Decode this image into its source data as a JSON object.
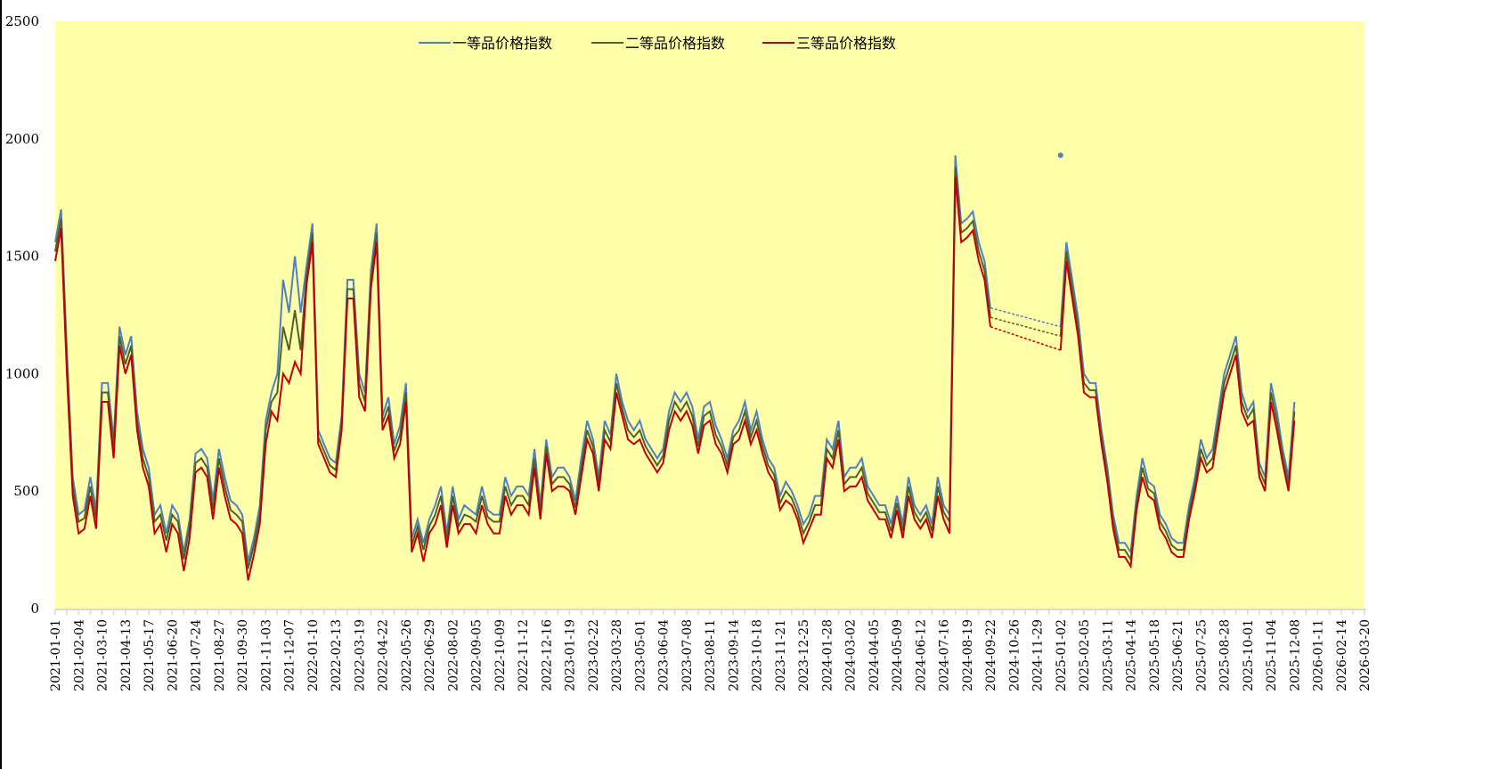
{
  "chart_data": {
    "type": "line",
    "title": "",
    "xlabel": "",
    "ylabel": "",
    "ylim": [
      0,
      2500
    ],
    "yticks": [
      0,
      500,
      1000,
      1500,
      2000,
      2500
    ],
    "grid": false,
    "legend_position": "top-center",
    "plot_background": "#FFFFAA",
    "x_tick_labels": [
      "2021-01-01",
      "2021-02-04",
      "2021-03-10",
      "2021-04-13",
      "2021-05-17",
      "2021-06-20",
      "2021-07-24",
      "2021-08-27",
      "2021-09-30",
      "2021-11-03",
      "2021-12-07",
      "2022-01-10",
      "2022-02-13",
      "2022-03-19",
      "2022-04-22",
      "2022-05-26",
      "2022-06-29",
      "2022-08-02",
      "2022-09-05",
      "2022-10-09",
      "2022-11-12",
      "2022-12-16",
      "2023-01-19",
      "2023-02-22",
      "2023-03-28",
      "2023-05-01",
      "2023-06-04",
      "2023-07-08",
      "2023-08-11",
      "2023-09-14",
      "2023-10-18",
      "2023-11-21",
      "2023-12-25",
      "2024-01-28",
      "2024-03-02",
      "2024-04-05",
      "2024-05-09",
      "2024-06-12",
      "2024-07-16",
      "2024-08-19",
      "2024-09-22",
      "2024-10-26",
      "2024-11-29",
      "2025-01-02",
      "2025-02-05",
      "2025-03-11",
      "2025-04-14",
      "2025-05-18",
      "2025-06-21",
      "2025-07-25",
      "2025-08-28",
      "2025-10-01",
      "2025-11-04",
      "2025-12-08",
      "2026-01-11",
      "2026-02-14",
      "2026-03-20"
    ],
    "gap": {
      "from_index": 40.0,
      "to_index": 43.0,
      "style": "dashed",
      "note": "no data between 2024-09-22 and 2025-01-02; series connected by dashed lines"
    },
    "x_positions": [
      0,
      0.25,
      0.5,
      0.75,
      1,
      1.25,
      1.5,
      1.75,
      2,
      2.25,
      2.5,
      2.75,
      3,
      3.25,
      3.5,
      3.75,
      4,
      4.25,
      4.5,
      4.75,
      5,
      5.25,
      5.5,
      5.75,
      6,
      6.25,
      6.5,
      6.75,
      7,
      7.25,
      7.5,
      7.75,
      8,
      8.25,
      8.5,
      8.75,
      9,
      9.25,
      9.5,
      9.75,
      10,
      10.25,
      10.5,
      10.75,
      11,
      11.25,
      11.5,
      11.75,
      12,
      12.25,
      12.5,
      12.75,
      13,
      13.25,
      13.5,
      13.75,
      14,
      14.25,
      14.5,
      14.75,
      15,
      15.25,
      15.5,
      15.75,
      16,
      16.25,
      16.5,
      16.75,
      17,
      17.25,
      17.5,
      17.75,
      18,
      18.25,
      18.5,
      18.75,
      19,
      19.25,
      19.5,
      19.75,
      20,
      20.25,
      20.5,
      20.75,
      21,
      21.25,
      21.5,
      21.75,
      22,
      22.25,
      22.5,
      22.75,
      23,
      23.25,
      23.5,
      23.75,
      24,
      24.25,
      24.5,
      24.75,
      25,
      25.25,
      25.5,
      25.75,
      26,
      26.25,
      26.5,
      26.75,
      27,
      27.25,
      27.5,
      27.75,
      28,
      28.25,
      28.5,
      28.75,
      29,
      29.25,
      29.5,
      29.75,
      30,
      30.25,
      30.5,
      30.75,
      31,
      31.25,
      31.5,
      31.75,
      32,
      32.25,
      32.5,
      32.75,
      33,
      33.25,
      33.5,
      33.75,
      34,
      34.25,
      34.5,
      34.75,
      35,
      35.25,
      35.5,
      35.75,
      36,
      36.25,
      36.5,
      36.75,
      37,
      37.25,
      37.5,
      37.75,
      38,
      38.25,
      38.5,
      38.75,
      39,
      39.25,
      39.5,
      39.75,
      40,
      43,
      43.25,
      43.5,
      43.75,
      44,
      44.25,
      44.5,
      44.75,
      45,
      45.25,
      45.5,
      45.75,
      46,
      46.25,
      46.5,
      46.75,
      47,
      47.25,
      47.5,
      47.75,
      48,
      48.25,
      48.5,
      48.75,
      49,
      49.25,
      49.5,
      49.75,
      50,
      50.25,
      50.5,
      50.75,
      51,
      51.25,
      51.5,
      51.75,
      52,
      52.25,
      52.5,
      52.75,
      53,
      53.25,
      53.5,
      53.75,
      54,
      54.25,
      54.5,
      54.75,
      55,
      55.25,
      55.5,
      55.75,
      56
    ],
    "series": [
      {
        "name": "一等品价格指数",
        "color": "#4F81BD",
        "values": [
          1560,
          1700,
          1100,
          560,
          400,
          420,
          560,
          420,
          960,
          960,
          720,
          1200,
          1080,
          1160,
          840,
          680,
          600,
          400,
          440,
          320,
          440,
          400,
          240,
          380,
          660,
          680,
          640,
          460,
          680,
          560,
          460,
          440,
          400,
          200,
          300,
          440,
          800,
          920,
          1000,
          1400,
          1260,
          1500,
          1260,
          1460,
          1640,
          760,
          700,
          640,
          620,
          820,
          1400,
          1400,
          1000,
          920,
          1440,
          1640,
          820,
          900,
          700,
          780,
          960,
          300,
          380,
          280,
          380,
          440,
          520,
          320,
          520,
          380,
          440,
          420,
          400,
          520,
          420,
          400,
          400,
          560,
          480,
          520,
          520,
          480,
          680,
          440,
          720,
          560,
          600,
          600,
          560,
          460,
          640,
          800,
          720,
          560,
          800,
          740,
          1000,
          880,
          800,
          760,
          800,
          720,
          680,
          640,
          680,
          840,
          920,
          880,
          920,
          860,
          720,
          860,
          880,
          780,
          720,
          640,
          760,
          800,
          880,
          760,
          840,
          720,
          640,
          600,
          480,
          540,
          500,
          440,
          360,
          400,
          480,
          480,
          720,
          680,
          800,
          560,
          600,
          600,
          640,
          520,
          480,
          440,
          440,
          360,
          480,
          360,
          560,
          440,
          400,
          440,
          360,
          560,
          440,
          400,
          1930,
          1640,
          1660,
          1690,
          1560,
          1480,
          1280,
          1200,
          1560,
          1400,
          1240,
          1000,
          960,
          960,
          760,
          600,
          400,
          280,
          280,
          240,
          480,
          640,
          540,
          520,
          400,
          360,
          300,
          280,
          280,
          440,
          560,
          720,
          640,
          680,
          840,
          1000,
          1080,
          1160,
          920,
          840,
          880,
          620,
          560,
          960,
          840,
          680,
          560,
          880
        ]
      },
      {
        "name": "二等品价格指数",
        "color": "#4F6228",
        "values": [
          1520,
          1660,
          1060,
          520,
          370,
          385,
          520,
          385,
          920,
          920,
          690,
          1160,
          1040,
          1120,
          800,
          640,
          560,
          370,
          400,
          290,
          400,
          370,
          210,
          350,
          620,
          640,
          600,
          420,
          640,
          520,
          420,
          400,
          370,
          170,
          270,
          400,
          760,
          880,
          920,
          1200,
          1100,
          1270,
          1100,
          1420,
          1600,
          730,
          670,
          610,
          590,
          790,
          1360,
          1360,
          960,
          880,
          1400,
          1600,
          790,
          860,
          670,
          740,
          920,
          270,
          350,
          250,
          350,
          400,
          480,
          290,
          480,
          350,
          400,
          390,
          370,
          480,
          390,
          370,
          370,
          520,
          440,
          480,
          480,
          440,
          640,
          410,
          690,
          530,
          560,
          560,
          530,
          430,
          600,
          760,
          690,
          530,
          760,
          710,
          960,
          850,
          760,
          730,
          760,
          690,
          650,
          610,
          650,
          800,
          880,
          840,
          880,
          820,
          690,
          820,
          840,
          740,
          690,
          610,
          730,
          760,
          840,
          730,
          800,
          690,
          610,
          570,
          450,
          500,
          470,
          410,
          320,
          370,
          440,
          440,
          680,
          640,
          760,
          530,
          560,
          560,
          600,
          490,
          450,
          410,
          410,
          330,
          450,
          330,
          520,
          410,
          370,
          410,
          330,
          520,
          410,
          370,
          1880,
          1600,
          1620,
          1650,
          1520,
          1440,
          1240,
          1160,
          1520,
          1360,
          1200,
          960,
          930,
          930,
          730,
          570,
          370,
          250,
          250,
          210,
          450,
          600,
          510,
          490,
          370,
          330,
          270,
          250,
          250,
          410,
          530,
          680,
          610,
          640,
          800,
          960,
          1040,
          1120,
          880,
          810,
          850,
          590,
          530,
          920,
          800,
          650,
          530,
          840
        ]
      },
      {
        "name": "三等品价格指数",
        "color": "#C00000",
        "values": [
          1480,
          1620,
          1000,
          480,
          320,
          340,
          480,
          340,
          880,
          880,
          640,
          1120,
          1000,
          1080,
          760,
          600,
          520,
          320,
          360,
          240,
          360,
          320,
          160,
          300,
          580,
          600,
          560,
          380,
          600,
          480,
          380,
          360,
          320,
          120,
          230,
          360,
          700,
          840,
          800,
          1000,
          960,
          1050,
          1000,
          1380,
          1560,
          700,
          640,
          580,
          560,
          760,
          1320,
          1320,
          900,
          840,
          1360,
          1560,
          760,
          820,
          640,
          700,
          880,
          240,
          320,
          200,
          320,
          360,
          440,
          260,
          440,
          320,
          360,
          360,
          320,
          440,
          360,
          320,
          320,
          480,
          400,
          440,
          440,
          400,
          600,
          380,
          660,
          500,
          520,
          520,
          500,
          400,
          560,
          720,
          660,
          500,
          720,
          680,
          920,
          820,
          720,
          700,
          720,
          660,
          620,
          580,
          620,
          760,
          840,
          800,
          840,
          780,
          660,
          780,
          800,
          700,
          660,
          580,
          700,
          720,
          800,
          700,
          760,
          660,
          580,
          540,
          420,
          460,
          440,
          380,
          280,
          340,
          400,
          400,
          640,
          600,
          720,
          500,
          520,
          520,
          560,
          460,
          420,
          380,
          380,
          300,
          420,
          300,
          480,
          380,
          340,
          380,
          300,
          480,
          380,
          320,
          1840,
          1560,
          1580,
          1610,
          1480,
          1400,
          1200,
          1100,
          1480,
          1320,
          1160,
          920,
          900,
          900,
          700,
          540,
          340,
          220,
          220,
          180,
          420,
          560,
          480,
          460,
          340,
          300,
          240,
          220,
          220,
          380,
          500,
          640,
          580,
          600,
          760,
          920,
          1000,
          1080,
          840,
          780,
          800,
          560,
          500,
          880,
          760,
          620,
          500,
          800
        ]
      }
    ],
    "peak_marker": {
      "series": "一等品价格指数",
      "x_label": "2025-01-02",
      "value": 1930
    }
  },
  "legend": {
    "items": [
      {
        "label": "一等品价格指数",
        "color": "#4F81BD"
      },
      {
        "label": "二等品价格指数",
        "color": "#4F6228"
      },
      {
        "label": "三等品价格指数",
        "color": "#C00000"
      }
    ]
  }
}
